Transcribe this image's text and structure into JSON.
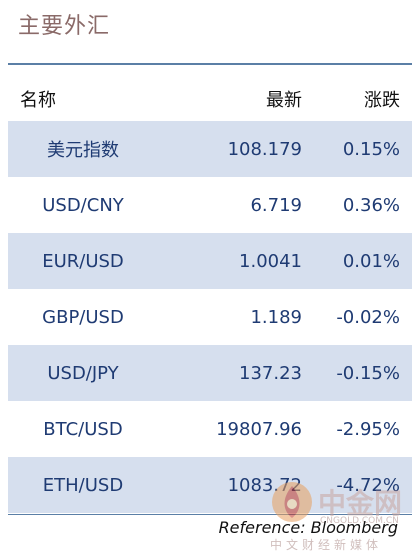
{
  "title": "主要外汇",
  "columns": {
    "name": "名称",
    "latest": "最新",
    "change": "涨跌"
  },
  "rows": [
    {
      "name": "美元指数",
      "latest": "108.179",
      "change": "0.15%"
    },
    {
      "name": "USD/CNY",
      "latest": "6.719",
      "change": "0.36%"
    },
    {
      "name": "EUR/USD",
      "latest": "1.0041",
      "change": "0.01%"
    },
    {
      "name": "GBP/USD",
      "latest": "1.189",
      "change": "-0.02%"
    },
    {
      "name": "USD/JPY",
      "latest": "137.23",
      "change": "-0.15%"
    },
    {
      "name": "BTC/USD",
      "latest": "19807.96",
      "change": "-2.95%"
    },
    {
      "name": "ETH/USD",
      "latest": "1083.72",
      "change": "-4.72%"
    }
  ],
  "reference": "Reference: Bloomberg",
  "watermark": {
    "name": "中金网",
    "url": "CNGOLD.COM.CN",
    "sub": "中文财经新媒体"
  },
  "colors": {
    "shaded_row": "#d6dfee",
    "value_text": "#1f3b73",
    "title": "#8a6a68"
  }
}
